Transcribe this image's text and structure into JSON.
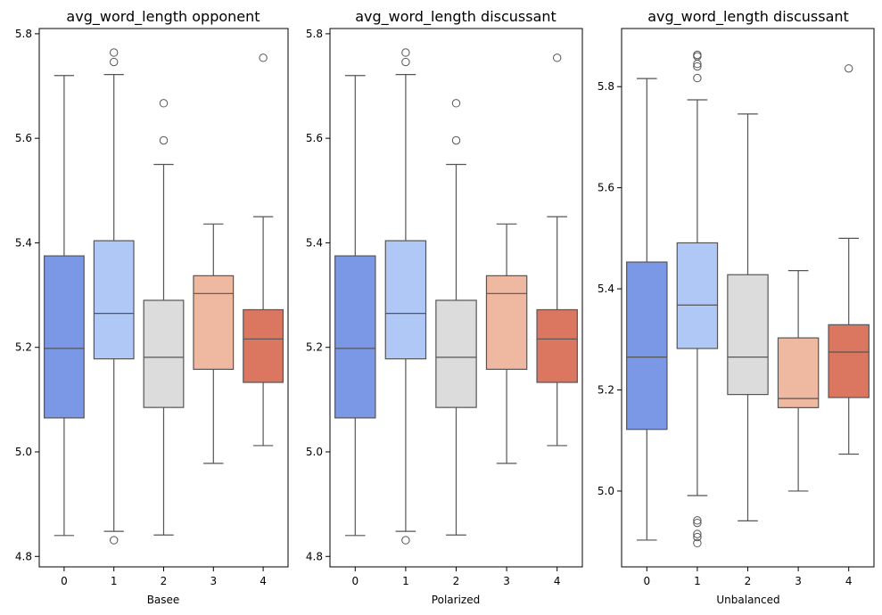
{
  "chart_data": [
    {
      "type": "boxplot",
      "title": "avg_word_length opponent",
      "xlabel": "Basee",
      "ylabel": "",
      "ylim": [
        4.78,
        5.81
      ],
      "yticks": [
        "4.8",
        "5.0",
        "5.2",
        "5.4",
        "5.6",
        "5.8"
      ],
      "categories": [
        "0",
        "1",
        "2",
        "3",
        "4"
      ],
      "colors": [
        "#7b98e6",
        "#b0c8f5",
        "#dcdcdc",
        "#efb9a1",
        "#db7761"
      ],
      "boxes": [
        {
          "whisker_low": 4.84,
          "q1": 5.065,
          "median": 5.198,
          "q3": 5.375,
          "whisker_high": 5.72,
          "outliers": []
        },
        {
          "whisker_low": 4.848,
          "q1": 5.178,
          "median": 5.265,
          "q3": 5.404,
          "whisker_high": 5.722,
          "outliers": [
            4.831,
            5.746,
            5.764
          ]
        },
        {
          "whisker_low": 4.841,
          "q1": 5.085,
          "median": 5.181,
          "q3": 5.29,
          "whisker_high": 5.55,
          "outliers": [
            5.596,
            5.667
          ]
        },
        {
          "whisker_low": 4.978,
          "q1": 5.158,
          "median": 5.303,
          "q3": 5.337,
          "whisker_high": 5.436,
          "outliers": []
        },
        {
          "whisker_low": 5.012,
          "q1": 5.133,
          "median": 5.216,
          "q3": 5.272,
          "whisker_high": 5.45,
          "outliers": [
            5.754
          ]
        }
      ]
    },
    {
      "type": "boxplot",
      "title": "avg_word_length discussant",
      "xlabel": "Polarized",
      "ylabel": "",
      "ylim": [
        4.78,
        5.81
      ],
      "yticks": [
        "4.8",
        "5.0",
        "5.2",
        "5.4",
        "5.6",
        "5.8"
      ],
      "categories": [
        "0",
        "1",
        "2",
        "3",
        "4"
      ],
      "colors": [
        "#7b98e6",
        "#b0c8f5",
        "#dcdcdc",
        "#efb9a1",
        "#db7761"
      ],
      "boxes": [
        {
          "whisker_low": 4.84,
          "q1": 5.065,
          "median": 5.198,
          "q3": 5.375,
          "whisker_high": 5.72,
          "outliers": []
        },
        {
          "whisker_low": 4.848,
          "q1": 5.178,
          "median": 5.265,
          "q3": 5.404,
          "whisker_high": 5.722,
          "outliers": [
            4.831,
            5.746,
            5.764
          ]
        },
        {
          "whisker_low": 4.841,
          "q1": 5.085,
          "median": 5.181,
          "q3": 5.29,
          "whisker_high": 5.55,
          "outliers": [
            5.596,
            5.667
          ]
        },
        {
          "whisker_low": 4.978,
          "q1": 5.158,
          "median": 5.303,
          "q3": 5.337,
          "whisker_high": 5.436,
          "outliers": []
        },
        {
          "whisker_low": 5.012,
          "q1": 5.133,
          "median": 5.216,
          "q3": 5.272,
          "whisker_high": 5.45,
          "outliers": [
            5.754
          ]
        }
      ]
    },
    {
      "type": "boxplot",
      "title": "avg_word_length discussant",
      "xlabel": "Unbalanced",
      "ylabel": "",
      "ylim": [
        4.85,
        5.915
      ],
      "yticks": [
        "5.0",
        "5.2",
        "5.4",
        "5.6",
        "5.8"
      ],
      "categories": [
        "0",
        "1",
        "2",
        "3",
        "4"
      ],
      "colors": [
        "#7b98e6",
        "#b0c8f5",
        "#dcdcdc",
        "#efb9a1",
        "#db7761"
      ],
      "boxes": [
        {
          "whisker_low": 4.903,
          "q1": 5.122,
          "median": 5.265,
          "q3": 5.453,
          "whisker_high": 5.816,
          "outliers": []
        },
        {
          "whisker_low": 4.991,
          "q1": 5.282,
          "median": 5.368,
          "q3": 5.491,
          "whisker_high": 5.774,
          "outliers": [
            4.897,
            4.909,
            4.915,
            4.937,
            4.942,
            5.817,
            5.84,
            5.845,
            5.86,
            5.863
          ]
        },
        {
          "whisker_low": 4.941,
          "q1": 5.191,
          "median": 5.265,
          "q3": 5.428,
          "whisker_high": 5.746,
          "outliers": []
        },
        {
          "whisker_low": 5.0,
          "q1": 5.165,
          "median": 5.183,
          "q3": 5.303,
          "whisker_high": 5.436,
          "outliers": []
        },
        {
          "whisker_low": 5.073,
          "q1": 5.185,
          "median": 5.275,
          "q3": 5.329,
          "whisker_high": 5.5,
          "outliers": [
            5.836
          ]
        }
      ]
    }
  ]
}
